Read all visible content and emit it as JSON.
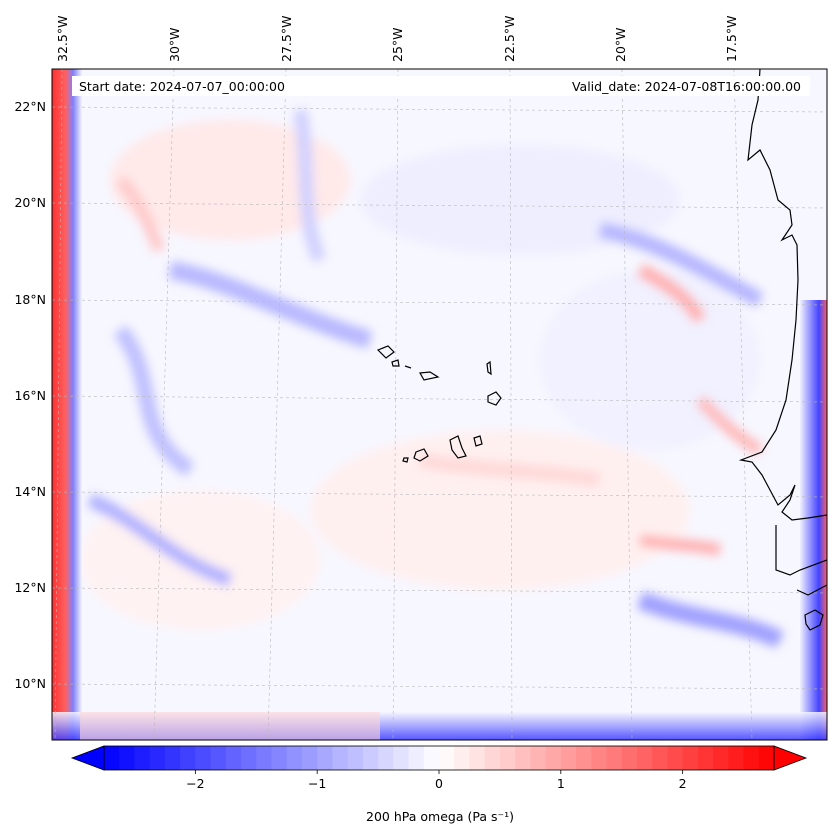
{
  "map": {
    "start_date": "Start date: 2024-07-07_00:00:00",
    "valid_date": "Valid_date: 2024-07-08T16:00:00.00",
    "lon_labels": [
      "32.5°W",
      "30°W",
      "27.5°W",
      "25°W",
      "22.5°W",
      "20°W",
      "17.5°W"
    ],
    "lat_labels": [
      "22°N",
      "20°N",
      "18°N",
      "16°N",
      "14°N",
      "12°N",
      "10°N"
    ],
    "field_variable": "200 hPa omega",
    "coastline_color": "#000000"
  },
  "colorbar": {
    "label": "200 hPa omega (Pa s⁻¹)",
    "ticks": [
      "−2",
      "−1",
      "0",
      "1",
      "2"
    ],
    "tick_values": [
      -2,
      -1,
      0,
      1,
      2
    ],
    "range": [
      -2.75,
      2.75
    ],
    "low_color": "#0000ff",
    "mid_color": "#ffffff",
    "high_color": "#ff0000"
  }
}
